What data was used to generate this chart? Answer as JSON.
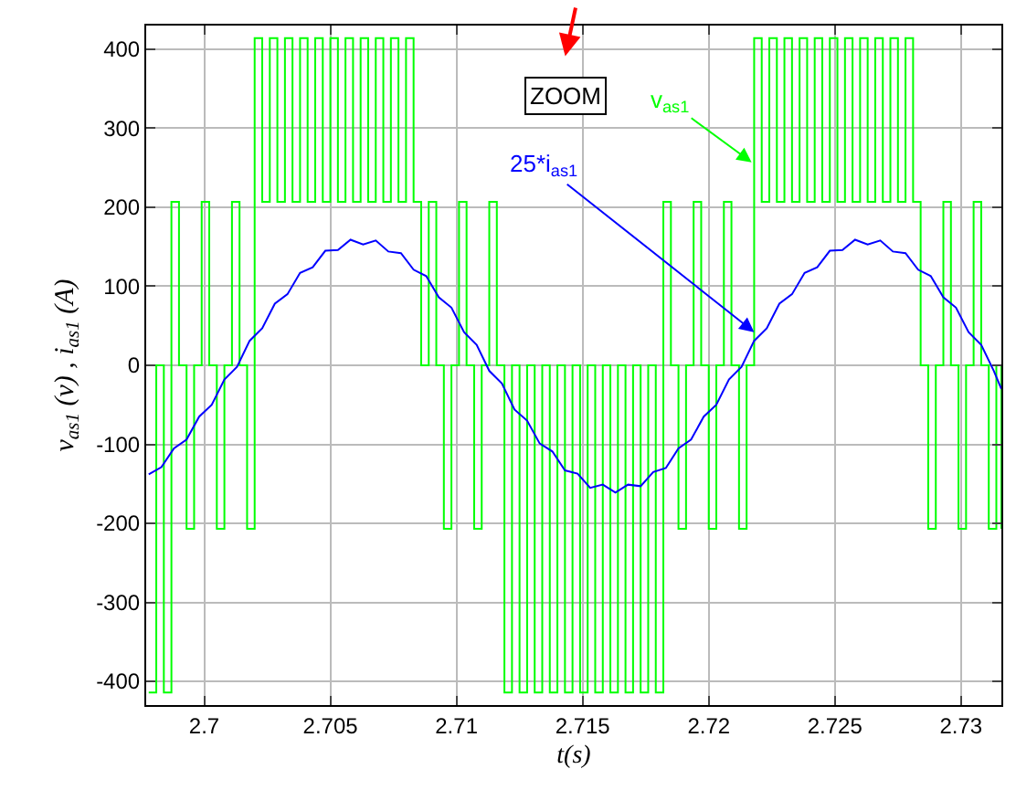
{
  "chart_data": {
    "type": "line",
    "xlabel": "t(s)",
    "ylabel": "v$_{as1}$ (v) , i$_{as1}$ (A)",
    "xlim": [
      2.6977,
      2.7316
    ],
    "ylim": [
      -430,
      430
    ],
    "xticks": [
      2.7,
      2.705,
      2.71,
      2.715,
      2.72,
      2.725,
      2.73
    ],
    "yticks": [
      -400,
      -300,
      -200,
      -100,
      0,
      100,
      200,
      300,
      400
    ],
    "grid": true,
    "marker": "none",
    "line_style": "solid",
    "annotations": [
      "ZOOM",
      {
        "text": "v$_{as1}$",
        "x": 2.7217,
        "y": 257
      },
      {
        "text": "25*i$_{as1}$",
        "x": 2.7218,
        "y": 42
      }
    ],
    "series": [
      {
        "type": "step",
        "color": "#00ff00",
        "x": [
          2.6978,
          2.6981,
          2.6984,
          2.6987,
          2.699,
          2.6993,
          2.6996,
          2.6999,
          2.7002,
          2.7005,
          2.7008,
          2.7011,
          2.7014,
          2.7017,
          2.702,
          2.7023,
          2.7026,
          2.7029,
          2.7032,
          2.7035,
          2.7038,
          2.7041,
          2.7044,
          2.7047,
          2.705,
          2.7053,
          2.7056,
          2.7059,
          2.7062,
          2.7065,
          2.7068,
          2.7071,
          2.7074,
          2.7077,
          2.708,
          2.7083,
          2.7086,
          2.7089,
          2.7092,
          2.7095,
          2.7098,
          2.7101,
          2.7104,
          2.7107,
          2.711,
          2.7113,
          2.7116,
          2.7119,
          2.7122,
          2.7125,
          2.7128,
          2.7131,
          2.7134,
          2.7137,
          2.714,
          2.7143,
          2.7146,
          2.7149,
          2.7152,
          2.7155,
          2.7158,
          2.7161,
          2.7164,
          2.7167,
          2.717,
          2.7173,
          2.7176,
          2.7179,
          2.7182,
          2.7185,
          2.7188,
          2.7191,
          2.7194,
          2.7197,
          2.72,
          2.7203,
          2.7206,
          2.7209,
          2.7212,
          2.7215,
          2.7218,
          2.7221,
          2.7224,
          2.7227,
          2.723,
          2.7233,
          2.7236,
          2.7239,
          2.7242,
          2.7245,
          2.7248,
          2.7251,
          2.7254,
          2.7257,
          2.726,
          2.7263,
          2.7266,
          2.7269,
          2.7272,
          2.7275,
          2.7278,
          2.7281,
          2.7284,
          2.7287,
          2.729,
          2.7293,
          2.7296,
          2.7299,
          2.7302,
          2.7305,
          2.7308,
          2.7311,
          2.7314,
          2.7316
        ],
        "values": [
          -414,
          0,
          -414,
          207,
          0,
          -207,
          0,
          207,
          0,
          -207,
          0,
          207,
          0,
          -207,
          414,
          207,
          414,
          207,
          414,
          207,
          414,
          207,
          414,
          207,
          414,
          207,
          414,
          207,
          414,
          207,
          414,
          207,
          414,
          207,
          414,
          207,
          0,
          207,
          0,
          -207,
          0,
          207,
          0,
          -207,
          0,
          207,
          0,
          -414,
          0,
          -414,
          0,
          -414,
          0,
          -414,
          0,
          -414,
          0,
          -414,
          0,
          -414,
          0,
          -414,
          0,
          -414,
          0,
          -414,
          0,
          -414,
          207,
          0,
          -207,
          0,
          207,
          0,
          -207,
          0,
          207,
          0,
          -207,
          0,
          414,
          207,
          414,
          207,
          414,
          207,
          414,
          207,
          414,
          207,
          414,
          207,
          414,
          207,
          414,
          207,
          414,
          207,
          414,
          207,
          414,
          207,
          0,
          -207,
          0,
          207,
          0,
          -207,
          0,
          207,
          0,
          -207,
          0,
          -207
        ]
      },
      {
        "color": "#0000ff",
        "x": [
          2.6978,
          2.6983,
          2.6988,
          2.6993,
          2.6998,
          2.7003,
          2.7008,
          2.7013,
          2.7018,
          2.7023,
          2.7028,
          2.7033,
          2.7038,
          2.7043,
          2.7048,
          2.7053,
          2.7058,
          2.7063,
          2.7068,
          2.7073,
          2.7078,
          2.7083,
          2.7088,
          2.7093,
          2.7098,
          2.7103,
          2.7108,
          2.7113,
          2.7118,
          2.7123,
          2.7128,
          2.7133,
          2.7138,
          2.7143,
          2.7148,
          2.7153,
          2.7158,
          2.7163,
          2.7168,
          2.7173,
          2.7178,
          2.7183,
          2.7188,
          2.7193,
          2.7198,
          2.7203,
          2.7208,
          2.7213,
          2.7218,
          2.7223,
          2.7228,
          2.7233,
          2.7238,
          2.7243,
          2.7248,
          2.7253,
          2.7258,
          2.7263,
          2.7268,
          2.7273,
          2.7278,
          2.7283,
          2.7288,
          2.7293,
          2.7298,
          2.7303,
          2.7308,
          2.7313,
          2.7316
        ],
        "values": [
          -138,
          -129,
          -105,
          -94,
          -65,
          -50,
          -18,
          -2,
          31,
          47,
          78,
          90,
          117,
          124,
          145,
          146,
          159,
          153,
          158,
          144,
          142,
          121,
          113,
          86,
          73,
          42,
          26,
          -7,
          -23,
          -56,
          -70,
          -99,
          -109,
          -133,
          -137,
          -155,
          -151,
          -161,
          -151,
          -153,
          -135,
          -130,
          -105,
          -94,
          -65,
          -50,
          -18,
          -2,
          31,
          47,
          78,
          90,
          117,
          124,
          145,
          146,
          159,
          153,
          158,
          144,
          142,
          121,
          113,
          86,
          73,
          42,
          26,
          -7,
          -30
        ]
      }
    ]
  }
}
